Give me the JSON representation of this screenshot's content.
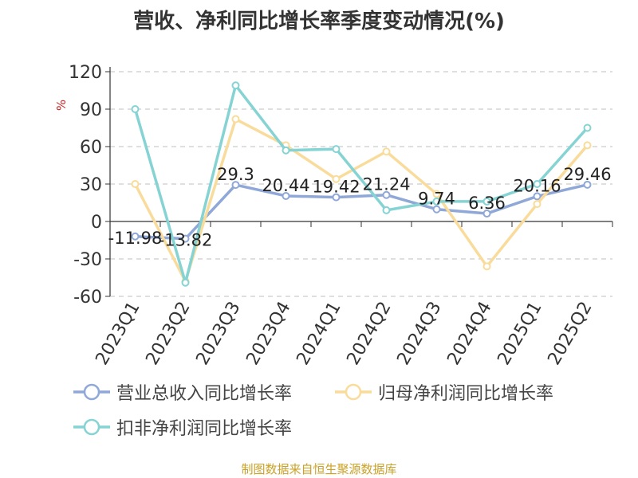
{
  "title": "营收、净利同比增长率季度变动情况(%)",
  "source": "制图数据来自恒生聚源数据库",
  "chart_data": {
    "type": "line",
    "title": "营收、净利同比增长率季度变动情况(%)",
    "ylabel": "%",
    "ylim": [
      -60,
      120
    ],
    "yticks": [
      -60,
      -30,
      0,
      30,
      60,
      90,
      120
    ],
    "grid": true,
    "legend_position": "bottom",
    "categories": [
      "2023Q1",
      "2023Q2",
      "2023Q3",
      "2023Q4",
      "2024Q1",
      "2024Q2",
      "2024Q3",
      "2024Q4",
      "2025Q1",
      "2025Q2"
    ],
    "series": [
      {
        "name": "营业总收入同比增长率",
        "color": "#8fa8d8",
        "values": [
          -11.98,
          -13.82,
          29.3,
          20.44,
          19.42,
          21.24,
          9.74,
          6.36,
          20.16,
          29.46
        ],
        "data_labels": [
          "-11.98",
          "-13.82",
          "29.3",
          "20.44",
          "19.42",
          "21.24",
          "9.74",
          "6.36",
          "20.16",
          "29.46"
        ]
      },
      {
        "name": "归母净利润同比增长率",
        "color": "#f9dc9c",
        "values": [
          30,
          -48,
          82,
          61,
          34,
          56,
          22,
          -36,
          14,
          61
        ]
      },
      {
        "name": "扣非净利润同比增长率",
        "color": "#86d3d3",
        "values": [
          90,
          -49,
          109,
          57,
          58,
          9,
          16,
          16,
          30,
          75
        ]
      }
    ]
  }
}
